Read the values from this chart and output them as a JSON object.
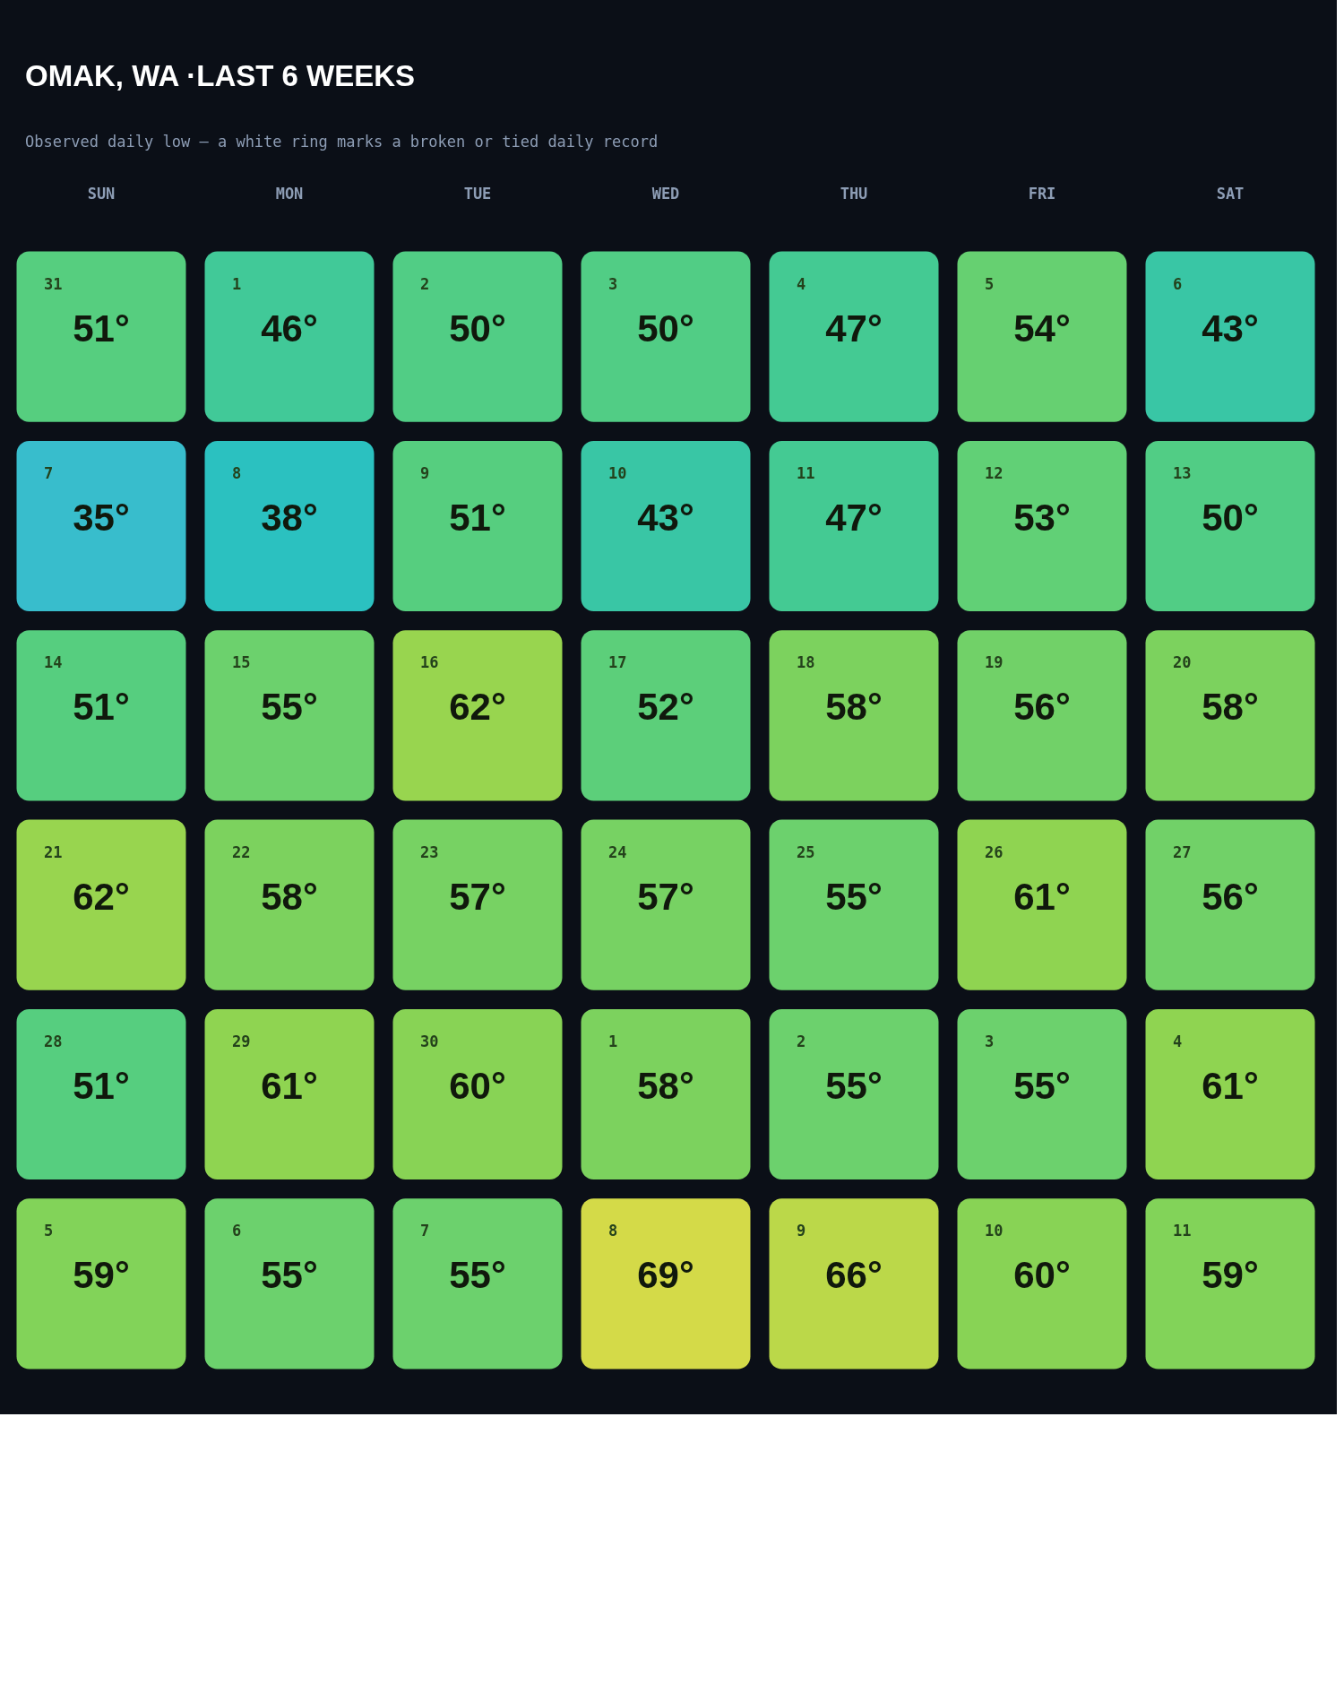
{
  "chart_data": {
    "type": "heatmap",
    "title": "OMAK, WA ·LAST 6 WEEKS",
    "subtitle": "Observed daily low — a white ring marks a broken or tied daily record",
    "categories": [
      "SUN",
      "MON",
      "TUE",
      "WED",
      "THU",
      "FRI",
      "SAT"
    ],
    "y_categories": [
      null,
      null,
      null,
      null,
      null,
      null
    ],
    "tick_labels": "x",
    "colors": [
      "#38bdcc",
      "#3cc6a2",
      "#5ccf7a",
      "#8bd352",
      "#d4da48"
    ],
    "cells": [
      [
        51,
        46,
        50,
        50,
        47,
        54,
        43
      ],
      [
        35,
        38,
        51,
        43,
        47,
        53,
        50
      ],
      [
        51,
        55,
        62,
        52,
        58,
        56,
        58
      ],
      [
        62,
        58,
        57,
        57,
        55,
        61,
        56
      ],
      [
        51,
        61,
        60,
        58,
        55,
        55,
        61
      ],
      [
        59,
        55,
        55,
        69,
        66,
        60,
        59
      ]
    ],
    "cell_labels": [
      [
        "51°",
        "46°",
        "50°",
        "50°",
        "47°",
        "54°",
        "43°"
      ],
      [
        "35°",
        "38°",
        "51°",
        "43°",
        "47°",
        "53°",
        "50°"
      ],
      [
        "51°",
        "55°",
        "62°",
        "52°",
        "58°",
        "56°",
        "58°"
      ],
      [
        "62°",
        "58°",
        "57°",
        "57°",
        "55°",
        "61°",
        "56°"
      ],
      [
        "51°",
        "61°",
        "60°",
        "58°",
        "55°",
        "55°",
        "61°"
      ],
      [
        "59°",
        "55°",
        "55°",
        "69°",
        "66°",
        "60°",
        "59°"
      ]
    ],
    "annotations": [
      "31",
      "1",
      "2",
      "3",
      "4",
      "5",
      "6",
      "7",
      "8",
      "9",
      "10",
      "11",
      "12",
      "13",
      "14",
      "15",
      "16",
      "17",
      "18",
      "19",
      "20",
      "21",
      "22",
      "23",
      "24",
      "25",
      "26",
      "27",
      "28",
      "29",
      "30",
      "1",
      "2",
      "3",
      "4",
      "5",
      "6",
      "7",
      "8",
      "9",
      "10",
      "11"
    ]
  }
}
